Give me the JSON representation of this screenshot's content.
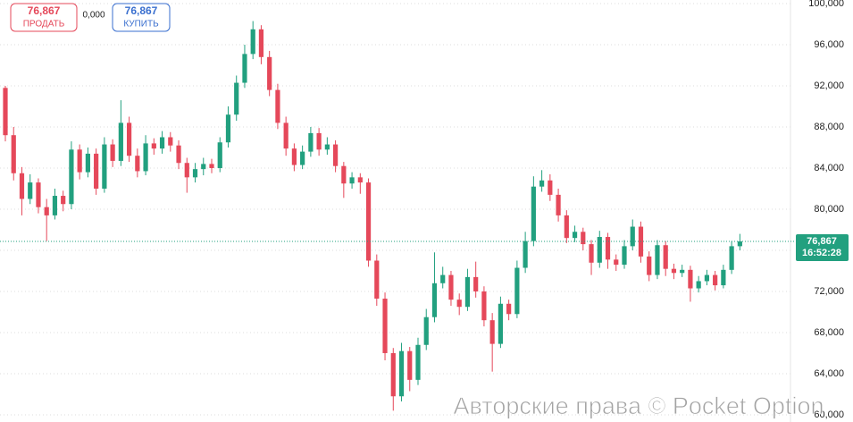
{
  "chart_data": {
    "type": "candlestick",
    "up_color": "#22a07f",
    "down_color": "#e5485a",
    "open": [
      91800,
      87200,
      83500,
      81000,
      82600,
      80200,
      79400,
      81300,
      80500,
      85800,
      83600,
      85400,
      82000,
      86300,
      84700,
      88400,
      85200,
      83700,
      86400,
      85900,
      87000,
      86200,
      84500,
      83100,
      83900,
      84400,
      84000,
      86500,
      89200,
      92300,
      95100,
      97500,
      94800,
      91600,
      88400,
      85900,
      84300,
      85600,
      87400,
      85800,
      86300,
      84200,
      82500,
      83100,
      82600,
      75000,
      71300,
      66000,
      61800,
      66200,
      63400,
      66800,
      69500,
      72800,
      73600,
      71200,
      70500,
      73400,
      72000,
      69200,
      66900,
      70800,
      69800,
      74300,
      76900,
      82200,
      82800,
      81400,
      79400,
      77200,
      77800,
      76600,
      74800,
      77300,
      75100,
      74600,
      76400,
      78300,
      75400,
      73600,
      76500,
      74200,
      73800,
      74100,
      72300,
      73000,
      73600,
      72600,
      74100,
      76400
    ],
    "high": [
      92000,
      88000,
      84100,
      83400,
      83000,
      81000,
      82000,
      81800,
      86600,
      86300,
      86000,
      85900,
      87000,
      86800,
      90600,
      89000,
      85900,
      87200,
      86900,
      87600,
      87500,
      86700,
      85000,
      84500,
      85000,
      84900,
      87000,
      90000,
      93000,
      96000,
      98300,
      97900,
      95400,
      92200,
      89000,
      86400,
      86200,
      88000,
      87900,
      87000,
      86700,
      84600,
      83600,
      83500,
      83000,
      75600,
      71900,
      66500,
      67000,
      66600,
      67500,
      70300,
      75800,
      74400,
      74000,
      71800,
      74200,
      74900,
      72500,
      69900,
      71500,
      71200,
      75000,
      77800,
      83200,
      83800,
      83400,
      82000,
      79900,
      78400,
      78200,
      77000,
      77900,
      77700,
      75600,
      77000,
      79000,
      78800,
      75900,
      77000,
      76900,
      74700,
      74600,
      74500,
      73500,
      74100,
      74000,
      74600,
      76900,
      77600
    ],
    "low": [
      86600,
      82800,
      79400,
      80500,
      79600,
      76900,
      79000,
      79800,
      80000,
      82900,
      83100,
      81400,
      81600,
      84100,
      84200,
      84600,
      83100,
      83300,
      85300,
      85400,
      85600,
      83900,
      81600,
      82600,
      83300,
      83500,
      83600,
      86000,
      88600,
      91800,
      94600,
      94100,
      91000,
      87800,
      85200,
      83700,
      83900,
      85100,
      85200,
      85300,
      83600,
      81100,
      82000,
      81500,
      74400,
      70600,
      65300,
      60400,
      61300,
      62300,
      62900,
      66300,
      69000,
      72300,
      70600,
      69700,
      70100,
      71400,
      68600,
      64200,
      66500,
      69200,
      69400,
      73800,
      76400,
      81700,
      80800,
      78800,
      76700,
      76800,
      76000,
      73600,
      74300,
      74200,
      74000,
      74200,
      76000,
      74800,
      73000,
      73200,
      73500,
      73200,
      73400,
      71000,
      71900,
      72600,
      72100,
      72300,
      73700,
      76000
    ],
    "close": [
      87200,
      83500,
      81000,
      82600,
      80200,
      79400,
      81300,
      80500,
      85800,
      83600,
      85400,
      82000,
      86300,
      84700,
      88400,
      85200,
      83700,
      86400,
      85900,
      87000,
      86200,
      84500,
      83100,
      83900,
      84400,
      84000,
      86500,
      89200,
      92300,
      95100,
      97500,
      94800,
      91600,
      88400,
      85900,
      84300,
      85600,
      87400,
      85800,
      86300,
      84200,
      82500,
      83100,
      82600,
      75000,
      71300,
      66000,
      61800,
      66200,
      63400,
      66800,
      69500,
      72800,
      73600,
      71200,
      70500,
      73400,
      72000,
      69200,
      66900,
      70800,
      69800,
      74300,
      76900,
      82200,
      82800,
      81400,
      79400,
      77200,
      77800,
      76600,
      74800,
      77300,
      75100,
      74600,
      76400,
      78300,
      75400,
      73600,
      76500,
      74200,
      73800,
      74100,
      72300,
      73000,
      73600,
      72600,
      74100,
      76400,
      76867
    ],
    "ylim": [
      59300,
      100350
    ],
    "yticks": [
      {
        "value": 60000,
        "label": "60,000"
      },
      {
        "value": 64000,
        "label": "64,000"
      },
      {
        "value": 68000,
        "label": "68,000"
      },
      {
        "value": 72000,
        "label": "72,000"
      },
      {
        "value": 76000,
        "label": "76,000"
      },
      {
        "value": 80000,
        "label": "80,000"
      },
      {
        "value": 84000,
        "label": "84,000"
      },
      {
        "value": 88000,
        "label": "88,000"
      },
      {
        "value": 92000,
        "label": "92,000"
      },
      {
        "value": 96000,
        "label": "96,000"
      },
      {
        "value": 100000,
        "label": "100,000"
      }
    ],
    "grid": true,
    "current_price": {
      "value": 76867,
      "label": "76,867",
      "time": "16:52:28"
    }
  },
  "ui": {
    "sell": {
      "price": "76,867",
      "label": "ПРОДАТЬ"
    },
    "spread": "0,000",
    "buy": {
      "price": "76,867",
      "label": "КУПИТЬ"
    },
    "watermark": "Авторские права © Pocket Option"
  }
}
